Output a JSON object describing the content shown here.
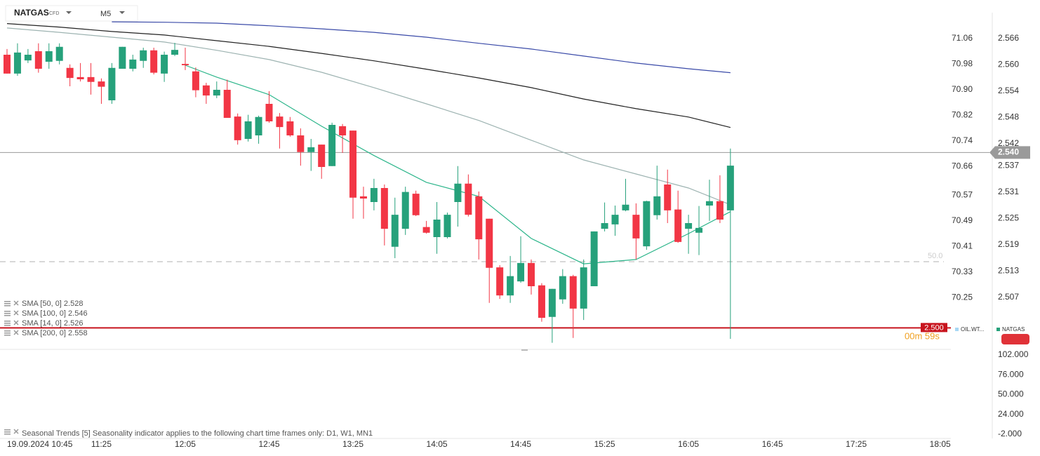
{
  "header": {
    "symbol": "NATGAS",
    "badge": "CFD",
    "timeframe": "M5"
  },
  "chart_data": [
    {
      "type": "candlestick",
      "x": [
        "10:40",
        "10:45",
        "10:50",
        "10:55",
        "11:00",
        "11:05",
        "11:10",
        "11:15",
        "11:20",
        "11:25",
        "11:30",
        "11:35",
        "11:40",
        "11:45",
        "11:50",
        "11:55",
        "12:00",
        "12:05",
        "12:10",
        "12:15",
        "12:20",
        "12:25",
        "12:30",
        "12:35",
        "12:40",
        "12:45",
        "12:50",
        "12:55",
        "13:00",
        "13:05",
        "13:10",
        "13:15",
        "13:20",
        "13:25",
        "13:30",
        "13:35",
        "13:40",
        "13:45",
        "13:50",
        "13:55",
        "14:00",
        "14:05",
        "14:10",
        "14:15",
        "14:20",
        "14:25",
        "14:30",
        "14:35",
        "14:40",
        "14:45",
        "14:50",
        "14:55",
        "15:00",
        "15:05",
        "15:10",
        "15:15",
        "15:20",
        "15:25",
        "15:30",
        "15:35",
        "15:40",
        "15:45",
        "15:50",
        "15:55",
        "16:00",
        "16:05",
        "16:10",
        "16:15",
        "16:20",
        "16:25"
      ],
      "open": [
        2.5623,
        2.558,
        2.561,
        2.5631,
        2.5607,
        2.5609,
        2.5593,
        2.5572,
        2.5572,
        2.5562,
        2.5519,
        2.5591,
        2.5591,
        2.5609,
        2.5633,
        2.558,
        2.5623,
        2.5602,
        2.5585,
        2.5553,
        2.553,
        2.5543,
        2.5482,
        2.5431,
        2.5439,
        2.5511,
        2.5482,
        2.5471,
        2.5439,
        2.5401,
        2.5418,
        2.5369,
        2.546,
        2.545,
        2.53,
        2.5287,
        2.5319,
        2.5185,
        2.5226,
        2.5306,
        2.523,
        2.5207,
        2.5207,
        2.5287,
        2.5329,
        2.53,
        2.5249,
        2.5138,
        2.5074,
        2.5106,
        2.5148,
        2.5097,
        2.5025,
        2.5065,
        2.5118,
        2.5044,
        2.5095,
        2.5226,
        2.5236,
        2.5268,
        2.5258,
        2.5186,
        2.5257,
        2.5327,
        2.527,
        2.5226,
        2.5217,
        2.5279,
        2.5289,
        2.5268
      ],
      "high": [
        2.5636,
        2.5649,
        2.5636,
        2.5649,
        2.5649,
        2.5649,
        2.5601,
        2.5604,
        2.5604,
        2.5569,
        2.5604,
        2.5641,
        2.5623,
        2.5639,
        2.5639,
        2.563,
        2.565,
        2.5639,
        2.5594,
        2.5559,
        2.5562,
        2.5566,
        2.5489,
        2.5486,
        2.5484,
        2.554,
        2.549,
        2.5481,
        2.5455,
        2.5431,
        2.5418,
        2.5468,
        2.5465,
        2.545,
        2.5322,
        2.534,
        2.5327,
        2.5297,
        2.5322,
        2.5313,
        2.5244,
        2.5287,
        2.5263,
        2.5369,
        2.535,
        2.5311,
        2.5249,
        2.5143,
        2.5164,
        2.5209,
        2.5156,
        2.5102,
        2.5089,
        2.5134,
        2.5121,
        2.5156,
        2.522,
        2.5286,
        2.5279,
        2.534,
        2.5284,
        2.529,
        2.537,
        2.5361,
        2.5313,
        2.5258,
        2.5278,
        2.5338,
        2.5348,
        2.5409
      ],
      "low": [
        2.558,
        2.5575,
        2.5604,
        2.5582,
        2.5591,
        2.5601,
        2.5551,
        2.5562,
        2.5532,
        2.5511,
        2.5511,
        2.5591,
        2.5585,
        2.5593,
        2.5578,
        2.5561,
        2.562,
        2.5588,
        2.5526,
        2.5511,
        2.5524,
        2.5479,
        2.5418,
        2.5425,
        2.542,
        2.5468,
        2.5409,
        2.5436,
        2.537,
        2.5358,
        2.534,
        2.5369,
        2.5399,
        2.5249,
        2.5249,
        2.5268,
        2.5188,
        2.5159,
        2.5212,
        2.5255,
        2.5215,
        2.5169,
        2.5204,
        2.5231,
        2.5254,
        2.5156,
        2.5057,
        2.5066,
        2.5057,
        2.5103,
        2.5076,
        2.5014,
        2.4966,
        2.5055,
        2.4977,
        2.5018,
        2.5095,
        2.522,
        2.521,
        2.5266,
        2.5156,
        2.5178,
        2.5247,
        2.5239,
        2.5194,
        2.5169,
        2.5166,
        2.5244,
        2.5239,
        2.4975
      ],
      "close": [
        2.558,
        2.5628,
        2.5623,
        2.5591,
        2.5631,
        2.5641,
        2.557,
        2.5567,
        2.5561,
        2.555,
        2.5593,
        2.5641,
        2.5612,
        2.5633,
        2.5582,
        2.5623,
        2.5634,
        2.5599,
        2.5542,
        2.553,
        2.5543,
        2.5479,
        2.5428,
        2.5471,
        2.5481,
        2.5471,
        2.5458,
        2.5439,
        2.5401,
        2.5412,
        2.5367,
        2.5463,
        2.5439,
        2.5297,
        2.5295,
        2.5319,
        2.5226,
        2.5258,
        2.531,
        2.5257,
        2.5217,
        2.5247,
        2.5258,
        2.5329,
        2.5258,
        2.5202,
        2.5137,
        2.5074,
        2.5118,
        2.5148,
        2.5095,
        2.5023,
        2.5089,
        2.5118,
        2.5044,
        2.5138,
        2.522,
        2.5239,
        2.5258,
        2.5281,
        2.5204,
        2.5289,
        2.53,
        2.5268,
        2.5196,
        2.5239,
        2.5228,
        2.5289,
        2.5247,
        2.537
      ],
      "up_color": "#26a17b",
      "down_color": "#f23645",
      "series": [
        {
          "name": "SMA [50, 0] 2.528",
          "color": "#9db3b1",
          "x": [
            "10:40",
            "11:05",
            "11:30",
            "11:55",
            "12:20",
            "12:45",
            "13:10",
            "13:35",
            "14:00",
            "14:25",
            "14:50",
            "15:15",
            "15:40",
            "16:05",
            "16:25"
          ],
          "values": [
            2.5684,
            2.5674,
            2.5663,
            2.5652,
            2.5633,
            2.5612,
            2.5583,
            2.5548,
            2.5511,
            2.5473,
            2.5428,
            2.5383,
            2.5351,
            2.5319,
            2.5281
          ]
        },
        {
          "name": "SMA [100, 0] 2.546",
          "color": "#222222",
          "x": [
            "10:40",
            "11:05",
            "11:30",
            "11:55",
            "12:20",
            "12:45",
            "13:10",
            "13:35",
            "14:00",
            "14:25",
            "14:50",
            "15:15",
            "15:40",
            "16:05",
            "16:25"
          ],
          "values": [
            2.5694,
            2.5686,
            2.5676,
            2.5668,
            2.5655,
            2.5642,
            2.5626,
            2.5609,
            2.559,
            2.557,
            2.5548,
            2.5522,
            2.55,
            2.5481,
            2.5457
          ]
        },
        {
          "name": "SMA [14, 0] 2.526",
          "color": "#2bb58a",
          "x": [
            "12:05",
            "12:20",
            "12:45",
            "13:10",
            "13:35",
            "14:00",
            "14:25",
            "14:50",
            "15:15",
            "15:40",
            "16:05",
            "16:25"
          ],
          "values": [
            2.5599,
            2.5572,
            2.5532,
            2.546,
            2.5393,
            2.5332,
            2.53,
            2.5204,
            2.5146,
            2.5156,
            2.5215,
            2.5265
          ]
        },
        {
          "name": "SMA [200, 0] 2.558",
          "color": "#3a4aa8",
          "x": [
            "11:30",
            "11:55",
            "12:20",
            "12:45",
            "13:10",
            "13:35",
            "14:00",
            "14:25",
            "14:50",
            "15:15",
            "15:40",
            "16:05",
            "16:25"
          ],
          "values": [
            2.5698,
            2.5697,
            2.5695,
            2.5689,
            2.5682,
            2.5674,
            2.5663,
            2.5649,
            2.5636,
            2.562,
            2.5604,
            2.5591,
            2.5582
          ]
        }
      ],
      "ylim": [
        2.4951,
        2.5719
      ],
      "yticks": [
        2.566,
        {
          "value": 2.56,
          "label": "2.560"
        },
        2.554,
        2.548,
        2.542,
        2.537,
        2.531,
        2.525,
        2.519,
        2.513,
        2.507
      ],
      "y2lim": [
        70.088,
        71.141
      ],
      "y2ticks": [
        71.06,
        70.98,
        {
          "value": 70.9,
          "label": "70.90"
        },
        70.82,
        70.74,
        70.66,
        70.57,
        70.49,
        70.41,
        70.33,
        70.25
      ],
      "xticks": [
        {
          "value": "10:45",
          "label": "19.09.2024 10:45"
        },
        "11:25",
        "12:05",
        "12:45",
        "13:25",
        "14:05",
        "14:45",
        "15:25",
        "16:05",
        "16:45",
        "17:25",
        "18:05"
      ],
      "price_lines": [
        {
          "value": 2.54,
          "label": "2.540",
          "color": "#9a9a9a"
        },
        {
          "value": 2.5,
          "label": "2.500",
          "color": "#c8141e"
        }
      ],
      "level_label": "50.0",
      "timer": "00m 59s",
      "legend": [
        {
          "name": "OIL.WT...",
          "color": "#a8d8f5"
        },
        {
          "name": "NATGAS",
          "color": "#26a17b"
        }
      ]
    },
    {
      "type": "indicator",
      "title": "Seasonal Trends [5] Seasonality indicator applies to the following chart time frames only: D1, W1, MN1",
      "ylim": [
        -7.5,
        107.5
      ],
      "yticks": [
        {
          "value": 102,
          "label": "102.000"
        },
        {
          "value": 76,
          "label": "76.000"
        },
        {
          "value": 50,
          "label": "50.000"
        },
        {
          "value": 24,
          "label": "24.000"
        },
        {
          "value": -2,
          "label": "-2.000"
        }
      ]
    }
  ]
}
